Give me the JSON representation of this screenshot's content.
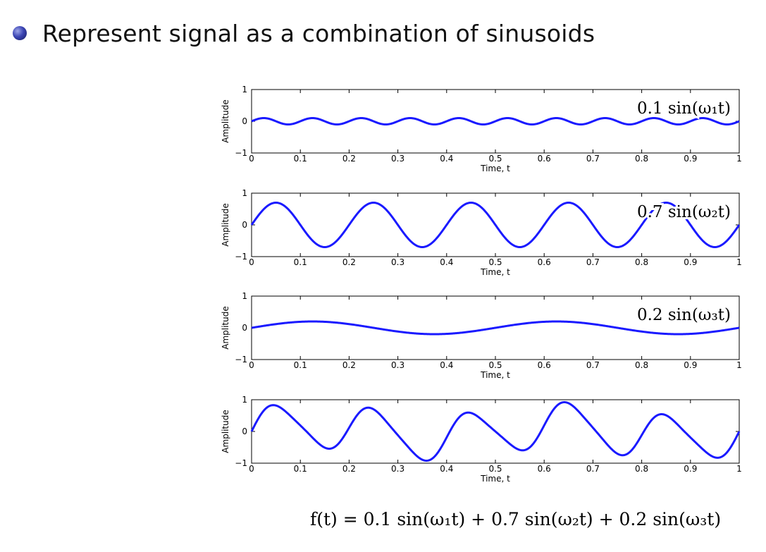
{
  "bullet": {
    "text": "Represent signal as a combination of sinusoids"
  },
  "formula": {
    "text": "f(t) = 0.1 sin(ω₁t) + 0.7 sin(ω₂t) + 0.2 sin(ω₃t)"
  },
  "colors": {
    "line": "#1a1aff",
    "axis": "#000000"
  },
  "chart_data": [
    {
      "type": "line",
      "annotation": "0.1 sin(ω₁t)",
      "xlabel": "Time, t",
      "ylabel": "Amplitude",
      "xlim": [
        0,
        1
      ],
      "ylim": [
        -1,
        1
      ],
      "xticks": [
        "0",
        "0.1",
        "0.2",
        "0.3",
        "0.4",
        "0.5",
        "0.6",
        "0.7",
        "0.8",
        "0.9",
        "1"
      ],
      "yticks": [
        "1",
        "0",
        "−1"
      ],
      "grid": false,
      "series": [
        {
          "amplitude": 0.1,
          "frequency_hz": 10,
          "function": "0.1*sin(2*pi*10*t)"
        }
      ]
    },
    {
      "type": "line",
      "annotation": "0.7 sin(ω₂t)",
      "xlabel": "Time, t",
      "ylabel": "Amplitude",
      "xlim": [
        0,
        1
      ],
      "ylim": [
        -1,
        1
      ],
      "xticks": [
        "0",
        "0.1",
        "0.2",
        "0.3",
        "0.4",
        "0.5",
        "0.6",
        "0.7",
        "0.8",
        "0.9",
        "1"
      ],
      "yticks": [
        "1",
        "0",
        "−1"
      ],
      "grid": false,
      "series": [
        {
          "amplitude": 0.7,
          "frequency_hz": 5,
          "function": "0.7*sin(2*pi*5*t)"
        }
      ]
    },
    {
      "type": "line",
      "annotation": "0.2 sin(ω₃t)",
      "xlabel": "Time, t",
      "ylabel": "Amplitude",
      "xlim": [
        0,
        1
      ],
      "ylim": [
        -1,
        1
      ],
      "xticks": [
        "0",
        "0.1",
        "0.2",
        "0.3",
        "0.4",
        "0.5",
        "0.6",
        "0.7",
        "0.8",
        "0.9",
        "1"
      ],
      "yticks": [
        "1",
        "0",
        "−1"
      ],
      "grid": false,
      "series": [
        {
          "amplitude": 0.2,
          "frequency_hz": 2,
          "function": "0.2*sin(2*pi*2*t)"
        }
      ]
    },
    {
      "type": "line",
      "annotation": "",
      "xlabel": "Time, t",
      "ylabel": "Amplitude",
      "xlim": [
        0,
        1
      ],
      "ylim": [
        -1,
        1
      ],
      "xticks": [
        "0",
        "0.1",
        "0.2",
        "0.3",
        "0.4",
        "0.5",
        "0.6",
        "0.7",
        "0.8",
        "0.9",
        "1"
      ],
      "yticks": [
        "1",
        "0",
        "−1"
      ],
      "grid": false,
      "series": [
        {
          "components": [
            {
              "amplitude": 0.1,
              "frequency_hz": 10
            },
            {
              "amplitude": 0.7,
              "frequency_hz": 5
            },
            {
              "amplitude": 0.2,
              "frequency_hz": 2
            }
          ],
          "function": "sum of components"
        }
      ]
    }
  ]
}
